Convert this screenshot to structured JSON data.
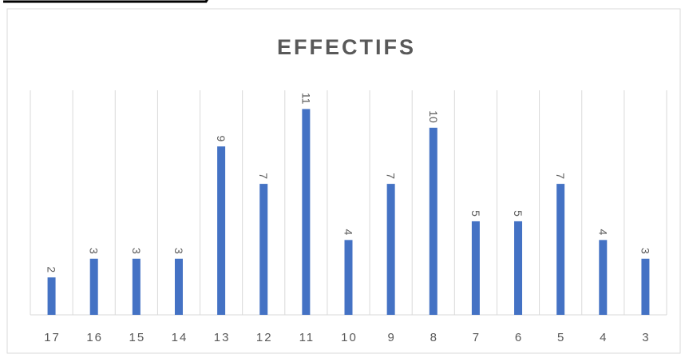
{
  "colors": {
    "bar": "#4472c4",
    "grid": "#d9d9d9",
    "text": "#595959",
    "border": "#d9d9d9",
    "header_mark": "#000000"
  },
  "chart_data": {
    "type": "bar",
    "title": "EFFECTIFS",
    "xlabel": "",
    "ylabel": "",
    "categories": [
      "17",
      "16",
      "15",
      "14",
      "13",
      "12",
      "11",
      "10",
      "9",
      "8",
      "7",
      "6",
      "5",
      "4",
      "3"
    ],
    "values": [
      2,
      3,
      3,
      3,
      9,
      7,
      11,
      4,
      7,
      10,
      5,
      5,
      7,
      4,
      3
    ],
    "data_labels": [
      "2",
      "3",
      "3",
      "3",
      "9",
      "7",
      "11",
      "4",
      "7",
      "10",
      "5",
      "5",
      "7",
      "4",
      "3"
    ],
    "ylim": [
      0,
      12
    ],
    "grid": "vertical",
    "legend": "none",
    "data_label_orientation": "rotated-90"
  }
}
